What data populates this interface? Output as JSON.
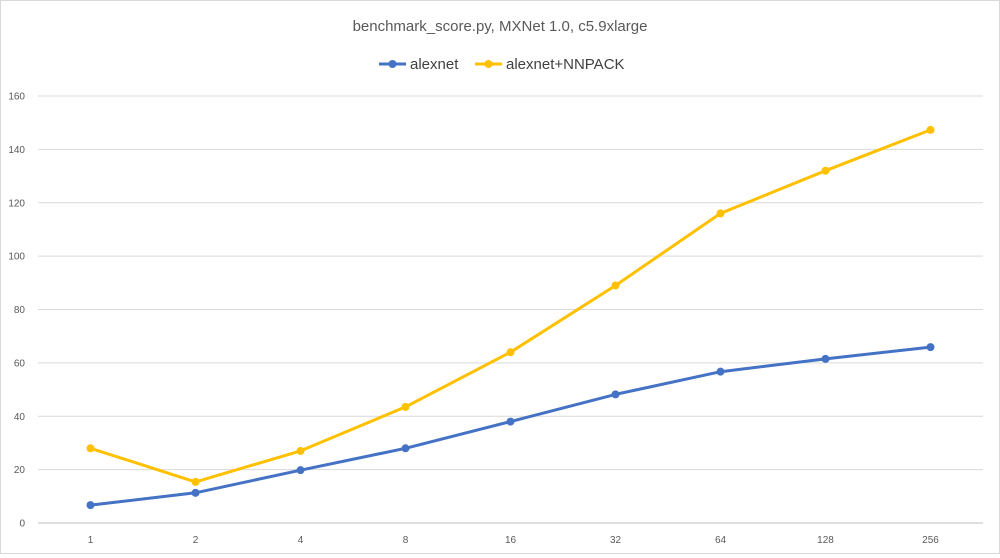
{
  "chart_data": {
    "type": "line",
    "title": "benchmark_score.py,  MXNet 1.0, c5.9xlarge",
    "xlabel": "",
    "ylabel": "",
    "categories": [
      "1",
      "2",
      "4",
      "8",
      "16",
      "32",
      "64",
      "128",
      "256"
    ],
    "ylim": [
      0,
      160
    ],
    "yticks": [
      0,
      20,
      40,
      60,
      80,
      100,
      120,
      140,
      160
    ],
    "grid": true,
    "legend_position": "top",
    "series": [
      {
        "name": "alexnet",
        "color": "#4472c4",
        "values": [
          6.7,
          11.3,
          19.8,
          28.0,
          38.0,
          48.2,
          56.7,
          61.5,
          65.9
        ]
      },
      {
        "name": "alexnet+NNPACK",
        "color": "#ffc000",
        "values": [
          28.0,
          15.4,
          27.0,
          43.5,
          64.0,
          89.0,
          116.0,
          132.0,
          147.3
        ]
      }
    ]
  }
}
